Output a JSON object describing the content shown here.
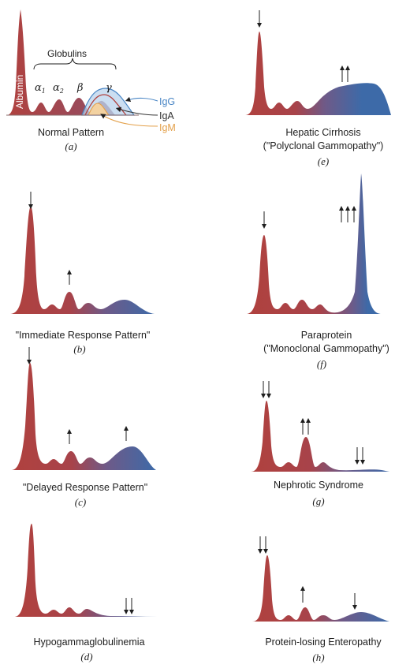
{
  "panel_a": {
    "caption": "Normal Pattern",
    "letter": "(a)",
    "albumin_label": "Albumin",
    "globulins_label": "Globulins",
    "alpha1_label": "α",
    "alpha1_sub": "1",
    "alpha2_label": "α",
    "alpha2_sub": "2",
    "beta_label": "β",
    "gamma_label": "γ",
    "igg_label": "IgG",
    "iga_label": "IgA",
    "igm_label": "IgM"
  },
  "panels": [
    {
      "id": "b",
      "caption_lines": [
        "\"Immediate Response Pattern\""
      ],
      "letter": "(b)"
    },
    {
      "id": "c",
      "caption_lines": [
        "\"Delayed Response Pattern\""
      ],
      "letter": "(c)"
    },
    {
      "id": "d",
      "caption_lines": [
        "Hypogammaglobulinemia"
      ],
      "letter": "(d)"
    },
    {
      "id": "e",
      "caption_lines": [
        "Hepatic Cirrhosis",
        "(\"Polyclonal Gammopathy\")"
      ],
      "letter": "(e)"
    },
    {
      "id": "f",
      "caption_lines": [
        "Paraprotein",
        "(\"Monoclonal Gammopathy\")"
      ],
      "letter": "(f)"
    },
    {
      "id": "g",
      "caption_lines": [
        "Nephrotic Syndrome"
      ],
      "letter": "(g)"
    },
    {
      "id": "h",
      "caption_lines": [
        "Protein-losing Enteropathy"
      ],
      "letter": "(h)"
    }
  ],
  "colors": {
    "albumin_red": "#b0413e",
    "globulin_blue": "#3d6aa8",
    "igg_blue": "#4a86c5",
    "iga_dark": "#333333",
    "igm_orange": "#e3a04a",
    "ink": "#1e1e1e"
  }
}
